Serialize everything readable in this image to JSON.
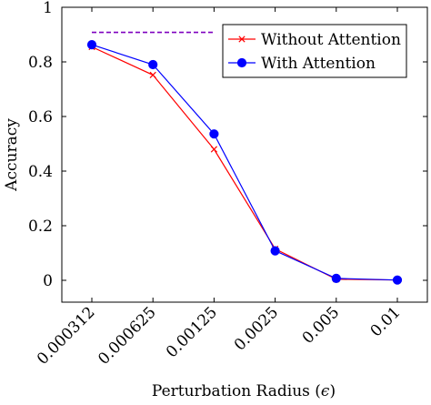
{
  "chart_data": {
    "type": "line",
    "categories": [
      "0.000312",
      "0.000625",
      "0.00125",
      "0.0025",
      "0.005",
      "0.01"
    ],
    "xlabel_text": "Perturbation Radius (",
    "xlabel_symbol": "ϵ",
    "xlabel_close": ")",
    "ylabel": "Accuracy",
    "ylim": [
      -0.08,
      1
    ],
    "yticks": [
      0,
      0.2,
      0.4,
      0.6,
      0.8,
      1
    ],
    "ytick_labels": [
      "0",
      "0.2",
      "0.4",
      "0.6",
      "0.8",
      "1"
    ],
    "grid": false,
    "legend_position": "top-right",
    "series": [
      {
        "name": "Without Attention",
        "color": "#ff0000",
        "marker": "x",
        "values": [
          0.855,
          0.752,
          0.48,
          0.115,
          0.004,
          0.001
        ]
      },
      {
        "name": "With Attention",
        "color": "#0000ff",
        "marker": "circle",
        "values": [
          0.863,
          0.79,
          0.536,
          0.108,
          0.007,
          0.001
        ]
      }
    ],
    "reference_line": {
      "color": "#7f00bf",
      "y": 0.908,
      "x_from": "0.000312",
      "x_to": "0.00125"
    }
  }
}
